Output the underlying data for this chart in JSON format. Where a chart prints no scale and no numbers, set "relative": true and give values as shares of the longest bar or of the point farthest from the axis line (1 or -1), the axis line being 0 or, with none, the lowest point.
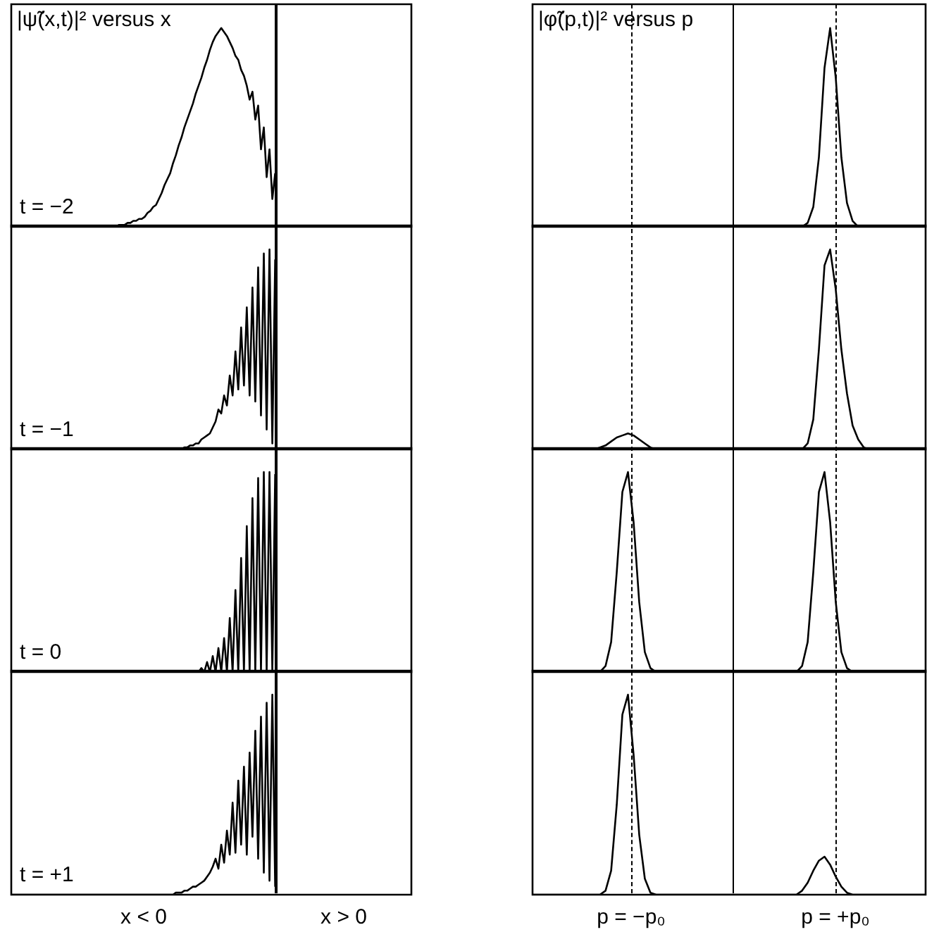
{
  "chart_data": [
    {
      "type": "line",
      "relative": true,
      "title": "|ψ̃(x,t)|² versus x",
      "marker": "none",
      "annotations": [
        "t = −2"
      ],
      "categories": [
        null,
        null,
        null,
        null,
        null,
        null,
        null,
        null,
        null,
        null,
        null,
        null,
        null,
        null,
        null,
        null,
        null,
        null,
        null,
        null,
        null,
        null,
        null,
        null,
        null,
        null,
        null,
        null,
        null,
        null,
        null,
        null,
        null,
        null,
        null,
        null,
        null,
        null,
        null,
        null,
        null,
        null,
        null,
        null,
        null,
        null,
        null,
        null,
        null,
        null,
        null,
        null,
        null,
        null,
        null,
        null,
        null,
        null,
        null,
        null,
        null,
        null,
        null,
        null,
        null,
        null,
        null,
        null,
        null,
        null,
        null,
        null,
        null,
        null,
        null,
        null,
        null,
        null,
        null,
        null,
        null,
        null,
        null,
        null,
        null,
        null,
        null,
        null,
        null,
        null,
        null,
        null,
        null,
        null,
        null,
        null,
        null,
        null,
        null,
        null,
        null,
        null,
        null,
        null,
        null,
        null,
        null,
        null,
        null,
        null,
        null,
        null,
        null,
        null,
        null,
        null,
        null,
        null,
        null,
        null,
        null,
        null,
        null,
        null,
        null,
        null,
        null,
        null,
        null,
        null,
        null,
        null,
        null,
        null,
        null,
        null,
        null,
        null,
        null,
        null,
        null,
        null
      ],
      "series": [
        {
          "color": "#000000",
          "values": [
            0,
            0,
            0,
            0,
            0,
            0,
            0,
            0,
            0,
            0,
            0,
            0,
            0,
            0,
            0,
            0,
            0,
            0,
            0,
            0,
            0,
            0,
            0,
            0,
            0,
            0,
            0,
            0,
            0,
            0,
            0,
            0,
            0,
            0,
            0,
            0,
            0,
            0,
            0.01,
            0.01,
            0.01,
            0.02,
            0.02,
            0.03,
            0.03,
            0.04,
            0.04,
            0.05,
            0.07,
            0.08,
            0.1,
            0.11,
            0.14,
            0.17,
            0.21,
            0.24,
            0.27,
            0.32,
            0.36,
            0.41,
            0.45,
            0.5,
            0.54,
            0.58,
            0.62,
            0.67,
            0.71,
            0.75,
            0.8,
            0.84,
            0.89,
            0.93,
            0.96,
            0.98,
            1,
            0.98,
            0.96,
            0.93,
            0.9,
            0.86,
            0.84,
            0.79,
            0.76,
            0.71,
            0.64,
            0.68,
            0.54,
            0.61,
            0.39,
            0.5,
            0.25,
            0.39,
            0.14,
            0.27,
            null,
            null,
            null,
            null,
            null,
            null,
            null,
            null,
            null,
            null,
            null,
            null,
            null,
            null,
            null,
            null,
            null,
            null,
            null,
            null,
            null,
            null,
            null,
            null,
            null,
            null,
            null,
            null,
            null,
            null,
            null,
            null,
            null,
            null,
            null,
            null,
            null,
            null,
            null,
            null,
            null,
            null,
            null,
            null,
            null,
            null,
            null,
            null
          ]
        }
      ]
    },
    {
      "type": "line",
      "relative": true,
      "title": "|φ̃(p,t)|² versus p",
      "marker": "none",
      "categories": [
        null,
        null,
        null,
        null,
        null,
        null,
        null,
        null,
        null,
        null,
        null,
        null,
        null,
        null,
        null,
        null,
        null,
        null,
        null,
        null,
        null,
        null,
        null,
        null,
        null,
        null,
        null,
        null,
        null,
        null,
        null,
        null,
        null,
        null,
        null,
        null,
        null,
        null,
        null,
        null,
        null,
        null,
        null,
        null,
        null,
        null,
        null,
        null,
        null,
        null,
        null,
        null,
        null,
        null,
        null,
        null,
        null,
        null,
        null,
        null,
        null,
        null,
        null,
        null,
        null,
        null,
        null,
        null,
        null,
        null,
        null
      ],
      "series": [
        {
          "color": "#000000",
          "values": [
            0,
            0,
            0,
            0,
            0,
            0,
            0,
            0,
            0,
            0,
            0,
            0,
            0,
            0,
            0,
            0,
            0,
            0,
            0,
            0,
            0,
            0,
            0,
            0,
            0,
            0,
            0,
            0,
            0,
            0,
            0,
            0,
            0,
            0,
            0,
            0,
            0,
            0,
            0,
            0,
            0,
            0,
            0,
            0,
            0,
            0,
            0,
            0,
            0,
            0.02,
            0.1,
            0.35,
            0.8,
            1,
            0.75,
            0.35,
            0.12,
            0.03,
            0,
            0,
            0,
            0,
            0,
            0,
            0,
            0,
            0,
            0,
            0,
            0,
            0
          ]
        }
      ]
    },
    {
      "type": "line",
      "relative": true,
      "marker": "none",
      "annotations": [
        "t = −1"
      ],
      "categories": [
        null,
        null,
        null,
        null,
        null,
        null,
        null,
        null,
        null,
        null,
        null,
        null,
        null,
        null,
        null,
        null,
        null,
        null,
        null,
        null,
        null,
        null,
        null,
        null,
        null,
        null,
        null,
        null,
        null,
        null,
        null,
        null,
        null,
        null,
        null,
        null,
        null,
        null,
        null,
        null,
        null,
        null,
        null,
        null,
        null,
        null,
        null,
        null,
        null,
        null,
        null,
        null,
        null,
        null,
        null,
        null,
        null,
        null,
        null,
        null,
        null,
        null,
        null,
        null,
        null,
        null,
        null,
        null,
        null,
        null,
        null,
        null,
        null,
        null,
        null,
        null,
        null,
        null,
        null,
        null,
        null,
        null,
        null,
        null,
        null,
        null,
        null,
        null,
        null,
        null,
        null,
        null,
        null,
        null,
        null,
        null,
        null,
        null,
        null,
        null,
        null,
        null,
        null,
        null,
        null,
        null,
        null,
        null,
        null,
        null,
        null,
        null,
        null,
        null,
        null,
        null,
        null,
        null,
        null,
        null,
        null,
        null,
        null,
        null,
        null,
        null,
        null,
        null,
        null,
        null,
        null,
        null,
        null,
        null,
        null,
        null,
        null,
        null,
        null,
        null,
        null,
        null
      ],
      "series": [
        {
          "color": "#000000",
          "values": [
            0,
            0,
            0,
            0,
            0,
            0,
            0,
            0,
            0,
            0,
            0,
            0,
            0,
            0,
            0,
            0,
            0,
            0,
            0,
            0,
            0,
            0,
            0,
            0,
            0,
            0,
            0,
            0,
            0,
            0,
            0,
            0,
            0,
            0,
            0,
            0,
            0,
            0,
            0,
            0,
            0,
            0,
            0,
            0,
            0,
            0,
            0,
            0,
            0,
            0,
            0,
            0,
            0,
            0,
            0,
            0,
            0,
            0,
            0,
            0,
            0,
            0.01,
            0.01,
            0.02,
            0.02,
            0.03,
            0.03,
            0.05,
            0.06,
            0.07,
            0.08,
            0.11,
            0.14,
            0.2,
            0.18,
            0.27,
            0.22,
            0.37,
            0.27,
            0.49,
            0.3,
            0.61,
            0.32,
            0.71,
            0.27,
            0.81,
            0.24,
            0.91,
            0.17,
            0.98,
            0.1,
            1,
            0.03,
            0.95,
            null,
            null,
            null,
            null,
            null,
            null,
            null,
            null,
            null,
            null,
            null,
            null,
            null,
            null,
            null,
            null,
            null,
            null,
            null,
            null,
            null,
            null,
            null,
            null,
            null,
            null,
            null,
            null,
            null,
            null,
            null,
            null,
            null,
            null,
            null,
            null,
            null,
            null,
            null,
            null,
            null,
            null,
            null,
            null,
            null,
            null,
            null,
            null
          ]
        }
      ]
    },
    {
      "type": "line",
      "relative": true,
      "marker": "none",
      "categories": [
        null,
        null,
        null,
        null,
        null,
        null,
        null,
        null,
        null,
        null,
        null,
        null,
        null,
        null,
        null,
        null,
        null,
        null,
        null,
        null,
        null,
        null,
        null,
        null,
        null,
        null,
        null,
        null,
        null,
        null,
        null,
        null,
        null,
        null,
        null,
        null,
        null,
        null,
        null,
        null,
        null,
        null,
        null,
        null,
        null,
        null,
        null,
        null,
        null,
        null,
        null,
        null,
        null,
        null,
        null,
        null,
        null,
        null,
        null,
        null,
        null,
        null,
        null,
        null,
        null,
        null,
        null,
        null,
        null,
        null,
        null
      ],
      "series": [
        {
          "color": "#000000",
          "values": [
            0,
            0,
            0,
            0,
            0,
            0,
            0,
            0,
            0,
            0,
            0,
            0,
            0.01,
            0.02,
            0.04,
            0.06,
            0.07,
            0.08,
            0.07,
            0.05,
            0.03,
            0.01,
            0,
            0,
            0,
            0,
            0,
            0,
            0,
            0,
            0,
            0,
            0,
            0,
            0,
            0,
            0,
            0,
            0,
            0,
            0,
            0,
            0,
            0,
            0,
            0,
            0,
            0,
            0,
            0.03,
            0.15,
            0.5,
            0.92,
            1,
            0.8,
            0.5,
            0.28,
            0.12,
            0.05,
            0.01,
            0,
            0,
            0,
            0,
            0,
            0,
            0,
            0,
            0,
            0,
            0
          ]
        }
      ]
    },
    {
      "type": "line",
      "relative": true,
      "marker": "none",
      "annotations": [
        "t = 0"
      ],
      "categories": [
        null,
        null,
        null,
        null,
        null,
        null,
        null,
        null,
        null,
        null,
        null,
        null,
        null,
        null,
        null,
        null,
        null,
        null,
        null,
        null,
        null,
        null,
        null,
        null,
        null,
        null,
        null,
        null,
        null,
        null,
        null,
        null,
        null,
        null,
        null,
        null,
        null,
        null,
        null,
        null,
        null,
        null,
        null,
        null,
        null,
        null,
        null,
        null,
        null,
        null,
        null,
        null,
        null,
        null,
        null,
        null,
        null,
        null,
        null,
        null,
        null,
        null,
        null,
        null,
        null,
        null,
        null,
        null,
        null,
        null,
        null,
        null,
        null,
        null,
        null,
        null,
        null,
        null,
        null,
        null,
        null,
        null,
        null,
        null,
        null,
        null,
        null,
        null,
        null,
        null,
        null,
        null,
        null,
        null,
        null,
        null,
        null,
        null,
        null,
        null,
        null,
        null,
        null,
        null,
        null,
        null,
        null,
        null,
        null,
        null,
        null,
        null,
        null,
        null,
        null,
        null,
        null,
        null,
        null,
        null,
        null,
        null,
        null,
        null,
        null,
        null,
        null,
        null,
        null,
        null,
        null,
        null,
        null,
        null,
        null,
        null,
        null,
        null,
        null,
        null,
        null,
        null
      ],
      "series": [
        {
          "color": "#000000",
          "values": [
            0,
            0,
            0,
            0,
            0,
            0,
            0,
            0,
            0,
            0,
            0,
            0,
            0,
            0,
            0,
            0,
            0,
            0,
            0,
            0,
            0,
            0,
            0,
            0,
            0,
            0,
            0,
            0,
            0,
            0,
            0,
            0,
            0,
            0,
            0,
            0,
            0,
            0,
            0,
            0,
            0,
            0,
            0,
            0,
            0,
            0,
            0,
            0,
            0,
            0,
            0,
            0,
            0,
            0,
            0,
            0,
            0,
            0,
            0,
            0,
            0,
            0,
            0,
            0,
            0,
            0,
            0,
            0.02,
            0,
            0.05,
            0,
            0.08,
            0,
            0.12,
            0,
            0.17,
            0,
            0.27,
            0,
            0.41,
            0,
            0.57,
            0,
            0.73,
            0,
            0.87,
            0,
            0.97,
            0,
            1,
            0,
            1,
            0,
            0.99,
            null,
            null,
            null,
            null,
            null,
            null,
            null,
            null,
            null,
            null,
            null,
            null,
            null,
            null,
            null,
            null,
            null,
            null,
            null,
            null,
            null,
            null,
            null,
            null,
            null,
            null,
            null,
            null,
            null,
            null,
            null,
            null,
            null,
            null,
            null,
            null,
            null,
            null,
            null,
            null,
            null,
            null,
            null,
            null,
            null,
            null,
            null,
            null
          ]
        }
      ]
    },
    {
      "type": "line",
      "relative": true,
      "marker": "none",
      "categories": [
        null,
        null,
        null,
        null,
        null,
        null,
        null,
        null,
        null,
        null,
        null,
        null,
        null,
        null,
        null,
        null,
        null,
        null,
        null,
        null,
        null,
        null,
        null,
        null,
        null,
        null,
        null,
        null,
        null,
        null,
        null,
        null,
        null,
        null,
        null,
        null,
        null,
        null,
        null,
        null,
        null,
        null,
        null,
        null,
        null,
        null,
        null,
        null,
        null,
        null,
        null,
        null,
        null,
        null,
        null,
        null,
        null,
        null,
        null,
        null,
        null,
        null,
        null,
        null,
        null,
        null,
        null,
        null,
        null,
        null,
        null
      ],
      "series": [
        {
          "color": "#000000",
          "values": [
            0,
            0,
            0,
            0,
            0,
            0,
            0,
            0,
            0,
            0,
            0,
            0,
            0,
            0.03,
            0.15,
            0.5,
            0.9,
            1,
            0.75,
            0.35,
            0.1,
            0.02,
            0,
            0,
            0,
            0,
            0,
            0,
            0,
            0,
            0,
            0,
            0,
            0,
            0,
            0,
            0,
            0,
            0,
            0,
            0,
            0,
            0,
            0,
            0,
            0,
            0,
            0,
            0.03,
            0.15,
            0.5,
            0.9,
            1,
            0.75,
            0.35,
            0.1,
            0.02,
            0,
            0,
            0,
            0,
            0,
            0,
            0,
            0,
            0,
            0,
            0,
            0,
            0,
            0
          ]
        }
      ]
    },
    {
      "type": "line",
      "relative": true,
      "marker": "none",
      "annotations": [
        "t = +1",
        "x < 0",
        "x > 0"
      ],
      "categories": [
        null,
        null,
        null,
        null,
        null,
        null,
        null,
        null,
        null,
        null,
        null,
        null,
        null,
        null,
        null,
        null,
        null,
        null,
        null,
        null,
        null,
        null,
        null,
        null,
        null,
        null,
        null,
        null,
        null,
        null,
        null,
        null,
        null,
        null,
        null,
        null,
        null,
        null,
        null,
        null,
        null,
        null,
        null,
        null,
        null,
        null,
        null,
        null,
        null,
        null,
        null,
        null,
        null,
        null,
        null,
        null,
        null,
        null,
        null,
        null,
        null,
        null,
        null,
        null,
        null,
        null,
        null,
        null,
        null,
        null,
        null,
        null,
        null,
        null,
        null,
        null,
        null,
        null,
        null,
        null,
        null,
        null,
        null,
        null,
        null,
        null,
        null,
        null,
        null,
        null,
        null,
        null,
        null,
        null,
        null,
        null,
        null,
        null,
        null,
        null,
        null,
        null,
        null,
        null,
        null,
        null,
        null,
        null,
        null,
        null,
        null,
        null,
        null,
        null,
        null,
        null,
        null,
        null,
        null,
        null,
        null,
        null,
        null,
        null,
        null,
        null,
        null,
        null,
        null,
        null,
        null,
        null,
        null,
        null,
        null,
        null,
        null,
        null,
        null,
        null,
        null,
        null
      ],
      "series": [
        {
          "color": "#000000",
          "values": [
            0,
            0,
            0,
            0,
            0,
            0,
            0,
            0,
            0,
            0,
            0,
            0,
            0,
            0,
            0,
            0,
            0,
            0,
            0,
            0,
            0,
            0,
            0,
            0,
            0,
            0,
            0,
            0,
            0,
            0,
            0,
            0,
            0,
            0,
            0,
            0,
            0,
            0,
            0,
            0,
            0,
            0,
            0,
            0,
            0,
            0,
            0,
            0,
            0,
            0,
            0,
            0,
            0,
            0,
            0,
            0,
            0,
            0,
            0.01,
            0.01,
            0.01,
            0.02,
            0.02,
            0.03,
            0.04,
            0.04,
            0.05,
            0.06,
            0.07,
            0.09,
            0.11,
            0.14,
            0.18,
            0.13,
            0.25,
            0.16,
            0.32,
            0.2,
            0.46,
            0.21,
            0.57,
            0.25,
            0.64,
            0.2,
            0.71,
            0.29,
            0.82,
            0.18,
            0.89,
            0.11,
            0.96,
            0.07,
            1,
            0.04,
            null,
            null,
            null,
            null,
            null,
            null,
            null,
            null,
            null,
            null,
            null,
            null,
            null,
            null,
            null,
            null,
            null,
            null,
            null,
            null,
            null,
            null,
            null,
            null,
            null,
            null,
            null,
            null,
            null,
            null,
            null,
            null,
            null,
            null,
            null,
            null,
            null,
            null,
            null,
            null,
            null,
            null,
            null,
            null,
            null,
            null,
            null,
            null
          ]
        }
      ]
    },
    {
      "type": "line",
      "relative": true,
      "marker": "none",
      "annotations": [
        "p = −p₀",
        "p = +p₀"
      ],
      "categories": [
        null,
        null,
        null,
        null,
        null,
        null,
        null,
        null,
        null,
        null,
        null,
        null,
        null,
        null,
        null,
        null,
        null,
        null,
        null,
        null,
        null,
        null,
        null,
        null,
        null,
        null,
        null,
        null,
        null,
        null,
        null,
        null,
        null,
        null,
        null,
        null,
        null,
        null,
        null,
        null,
        null,
        null,
        null,
        null,
        null,
        null,
        null,
        null,
        null,
        null,
        null,
        null,
        null,
        null,
        null,
        null,
        null,
        null,
        null,
        null,
        null,
        null,
        null,
        null,
        null,
        null,
        null,
        null,
        null,
        null,
        null
      ],
      "series": [
        {
          "color": "#000000",
          "values": [
            0,
            0,
            0,
            0,
            0,
            0,
            0,
            0,
            0,
            0,
            0,
            0,
            0,
            0.02,
            0.12,
            0.45,
            0.9,
            1,
            0.7,
            0.3,
            0.08,
            0.01,
            0,
            0,
            0,
            0,
            0,
            0,
            0,
            0,
            0,
            0,
            0,
            0,
            0,
            0,
            0,
            0,
            0,
            0,
            0,
            0,
            0,
            0,
            0,
            0,
            0,
            0,
            0.02,
            0.06,
            0.12,
            0.17,
            0.19,
            0.15,
            0.09,
            0.04,
            0.01,
            0,
            0,
            0,
            0,
            0,
            0,
            0,
            0,
            0,
            0,
            0,
            0,
            0,
            0
          ]
        }
      ]
    }
  ]
}
